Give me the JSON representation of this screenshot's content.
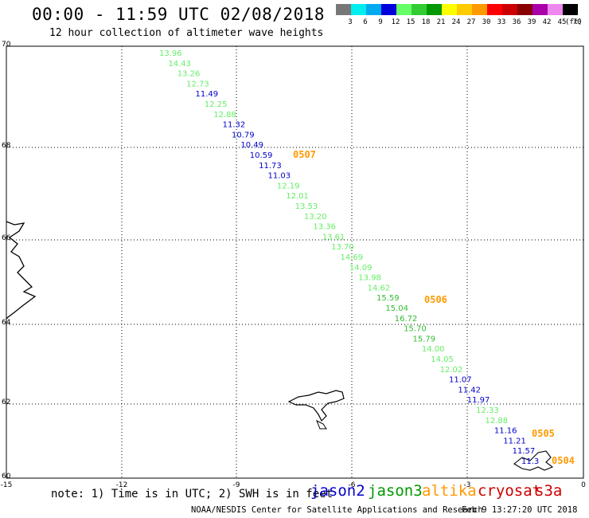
{
  "title": "00:00 - 11:59 UTC 02/08/2018",
  "subtitle": "12 hour collection of altimeter wave heights",
  "colorbar": {
    "unit": "(ft)",
    "colors": [
      "#777777",
      "#00eeee",
      "#00aaee",
      "#0000dd",
      "#66ff66",
      "#33cc33",
      "#009900",
      "#ffff00",
      "#ffcc00",
      "#ff9900",
      "#ff0000",
      "#cc0000",
      "#880000",
      "#aa00aa",
      "#ee88ee",
      "#000000"
    ],
    "labels": [
      "3",
      "6",
      "9",
      "12",
      "15",
      "18",
      "21",
      "24",
      "27",
      "30",
      "33",
      "36",
      "39",
      "42",
      "45",
      "70"
    ]
  },
  "map": {
    "lat_range": [
      60,
      70
    ],
    "lon_range": [
      -15,
      0
    ],
    "lat_ticks": [
      "70",
      "68",
      "66",
      "64",
      "62",
      "60"
    ],
    "lon_ticks": [
      "-15",
      "-12",
      "-9",
      "-6",
      "-3",
      "0"
    ]
  },
  "passes": [
    {
      "label": "0507",
      "color": "#ff9900"
    },
    {
      "label": "0506",
      "color": "#ff9900"
    },
    {
      "label": "0505",
      "color": "#ff9900"
    },
    {
      "label": "0504",
      "color": "#ff9900"
    }
  ],
  "wave_heights": [
    {
      "v": "13.96",
      "c": "#66ee66"
    },
    {
      "v": "14.43",
      "c": "#66ee66"
    },
    {
      "v": "13.26",
      "c": "#66ee66"
    },
    {
      "v": "12.73",
      "c": "#66ee66"
    },
    {
      "v": "11.49",
      "c": "#0000cc"
    },
    {
      "v": "12.25",
      "c": "#66ee66"
    },
    {
      "v": "12.88",
      "c": "#66ee66"
    },
    {
      "v": "11.32",
      "c": "#0000cc"
    },
    {
      "v": "10.79",
      "c": "#0000cc"
    },
    {
      "v": "10.49",
      "c": "#0000cc"
    },
    {
      "v": "10.59",
      "c": "#0000cc"
    },
    {
      "v": "11.73",
      "c": "#0000cc"
    },
    {
      "v": "11.03",
      "c": "#0000cc"
    },
    {
      "v": "12.19",
      "c": "#66ee66"
    },
    {
      "v": "12.01",
      "c": "#66ee66"
    },
    {
      "v": "13.53",
      "c": "#66ee66"
    },
    {
      "v": "13.20",
      "c": "#66ee66"
    },
    {
      "v": "13.36",
      "c": "#66ee66"
    },
    {
      "v": "13.61",
      "c": "#66ee66"
    },
    {
      "v": "13.70",
      "c": "#66ee66"
    },
    {
      "v": "14.69",
      "c": "#66ee66"
    },
    {
      "v": "14.09",
      "c": "#66ee66"
    },
    {
      "v": "13.98",
      "c": "#66ee66"
    },
    {
      "v": "14.62",
      "c": "#66ee66"
    },
    {
      "v": "15.59",
      "c": "#33bb33"
    },
    {
      "v": "15.04",
      "c": "#33bb33"
    },
    {
      "v": "16.72",
      "c": "#33bb33"
    },
    {
      "v": "15.70",
      "c": "#33bb33"
    },
    {
      "v": "15.79",
      "c": "#33bb33"
    },
    {
      "v": "14.00",
      "c": "#66ee66"
    },
    {
      "v": "14.05",
      "c": "#66ee66"
    },
    {
      "v": "12.02",
      "c": "#66ee66"
    },
    {
      "v": "11.07",
      "c": "#0000cc"
    },
    {
      "v": "11.42",
      "c": "#0000cc"
    },
    {
      "v": "11.97",
      "c": "#0000cc"
    },
    {
      "v": "12.33",
      "c": "#66ee66"
    },
    {
      "v": "12.88",
      "c": "#66ee66"
    },
    {
      "v": "11.16",
      "c": "#0000cc"
    },
    {
      "v": "11.21",
      "c": "#0000cc"
    },
    {
      "v": "11.57",
      "c": "#0000cc"
    },
    {
      "v": "11.3",
      "c": "#0000cc"
    }
  ],
  "note": "note: 1) Time is in UTC; 2) SWH is in feet",
  "satellites": [
    {
      "name": "jason2",
      "color": "#0000cc"
    },
    {
      "name": "jason3",
      "color": "#009900"
    },
    {
      "name": "altika",
      "color": "#ff9900"
    },
    {
      "name": "cryosat",
      "color": "#cc0000"
    },
    {
      "name": "s3a",
      "color": "#cc0000"
    }
  ],
  "credit": "NOAA/NESDIS Center for Satellite Applications and Research",
  "timestamp": "Feb  9 13:27:20 UTC 2018"
}
